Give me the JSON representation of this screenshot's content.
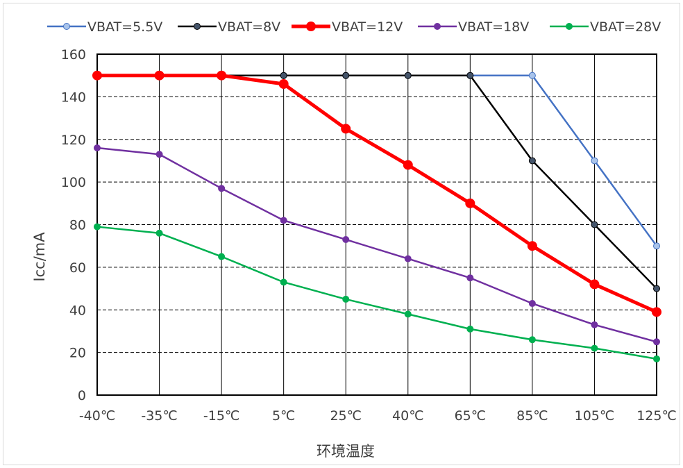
{
  "chart_data": {
    "type": "line",
    "title": "",
    "xlabel": "环境温度",
    "ylabel": "Icc/mA",
    "categories": [
      "-40℃",
      "-35℃",
      "-15℃",
      "5℃",
      "25℃",
      "40℃",
      "65℃",
      "85℃",
      "105℃",
      "125℃"
    ],
    "ylim": [
      0,
      160
    ],
    "yticks": [
      0,
      20,
      40,
      60,
      80,
      100,
      120,
      140,
      160
    ],
    "grid": "horizontal dashed + vertical solid",
    "legend_position": "top",
    "series": [
      {
        "name": "VBAT=5.5V",
        "color": "#4472c4",
        "marker_color": "#a9c4eb",
        "values": [
          150,
          150,
          150,
          150,
          150,
          150,
          150,
          150,
          110,
          70
        ]
      },
      {
        "name": "VBAT=8V",
        "color": "#000000",
        "marker_color": "#44546a",
        "values": [
          150,
          150,
          150,
          150,
          150,
          150,
          150,
          110,
          80,
          50
        ]
      },
      {
        "name": "VBAT=12V",
        "color": "#ff0000",
        "marker_color": "#ff0000",
        "values": [
          150,
          150,
          150,
          146,
          125,
          108,
          90,
          70,
          52,
          39
        ]
      },
      {
        "name": "VBAT=18V",
        "color": "#7030a0",
        "marker_color": "#7030a0",
        "values": [
          116,
          113,
          97,
          82,
          73,
          64,
          55,
          43,
          33,
          25
        ]
      },
      {
        "name": "VBAT=28V",
        "color": "#00b050",
        "marker_color": "#00b050",
        "values": [
          79,
          76,
          65,
          53,
          45,
          38,
          31,
          26,
          22,
          17
        ]
      }
    ]
  }
}
